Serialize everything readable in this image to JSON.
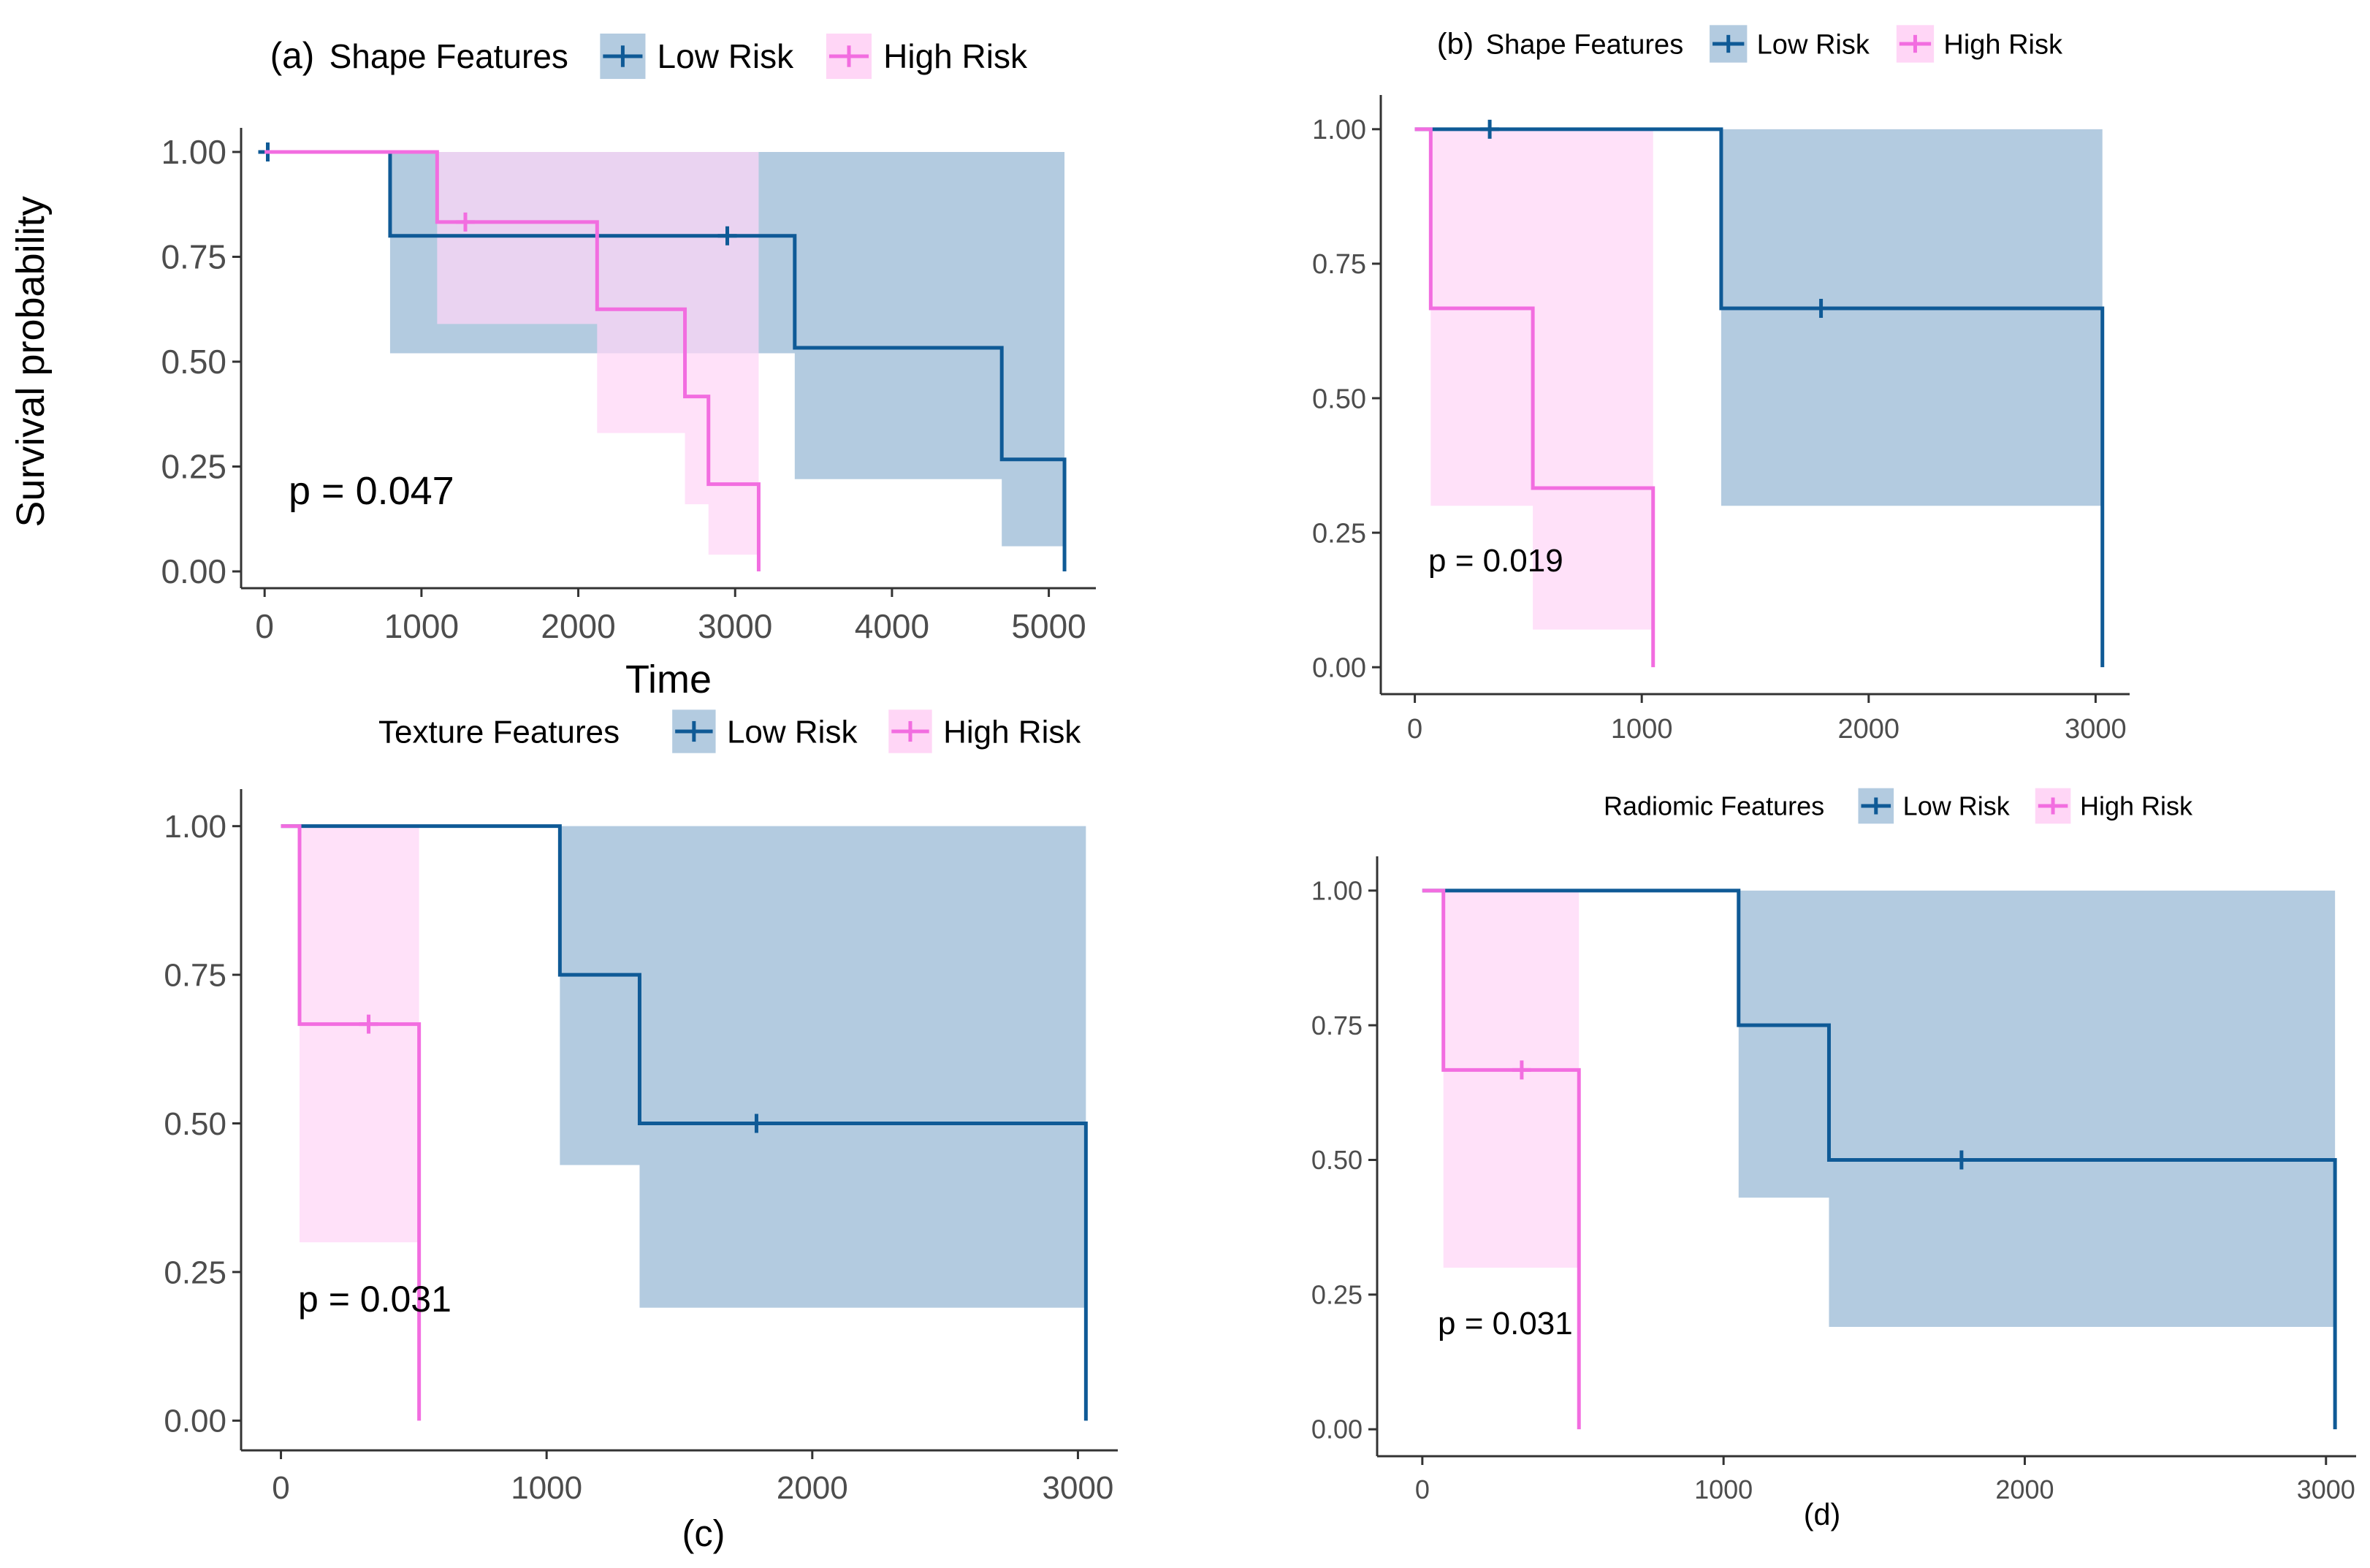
{
  "figure": {
    "ylabel": "Survival probability"
  },
  "colors": {
    "low_risk": "#0f5a96",
    "low_risk_band": "#b3cbe0",
    "high_risk": "#f26de0",
    "high_risk_band": "#ffd6f6",
    "axis": "#333333"
  },
  "chart_data": [
    {
      "type": "line",
      "panel_label": "(a)",
      "legend_title": "Shape Features",
      "legend_placement": "top",
      "xlabel": "Time",
      "ylabel": "Survival probability",
      "p_value_text": "p = 0.047",
      "xlim": [
        -150,
        5300
      ],
      "ylim": [
        -0.04,
        1.04
      ],
      "x_ticks": [
        0,
        1000,
        2000,
        3000,
        4000,
        5000
      ],
      "y_ticks": [
        0.0,
        0.25,
        0.5,
        0.75,
        1.0
      ],
      "x_tick_labels": [
        "0",
        "1000",
        "2000",
        "3000",
        "4000",
        "5000"
      ],
      "y_tick_labels": [
        "0.00",
        "0.25",
        "0.50",
        "0.75",
        "1.00"
      ],
      "series": [
        {
          "name": "Low Risk",
          "steps": [
            [
              0,
              1.0
            ],
            [
              800,
              0.8
            ],
            [
              3380,
              0.533
            ],
            [
              4700,
              0.267
            ],
            [
              5100,
              0.0
            ]
          ],
          "end_x": 5100,
          "band": [
            [
              800,
              0.52,
              1.0
            ],
            [
              3380,
              0.22,
              1.0
            ],
            [
              4700,
              0.06,
              1.0
            ],
            [
              5100,
              0.06,
              1.0
            ]
          ],
          "censor": [
            [
              20,
              1.0
            ],
            [
              2950,
              0.8
            ]
          ]
        },
        {
          "name": "High Risk",
          "steps": [
            [
              0,
              1.0
            ],
            [
              1100,
              0.833
            ],
            [
              2120,
              0.625
            ],
            [
              2680,
              0.417
            ],
            [
              2830,
              0.208
            ],
            [
              3150,
              0.0
            ]
          ],
          "end_x": 3150,
          "band": [
            [
              1100,
              0.59,
              1.0
            ],
            [
              2120,
              0.33,
              1.0
            ],
            [
              2680,
              0.16,
              1.0
            ],
            [
              2830,
              0.04,
              1.0
            ],
            [
              3150,
              0.04,
              1.0
            ]
          ],
          "censor": [
            [
              1280,
              0.833
            ]
          ]
        }
      ]
    },
    {
      "type": "line",
      "panel_label": "(b)",
      "legend_title": "Shape Features",
      "legend_placement": "top",
      "xlabel": "",
      "ylabel": "",
      "p_value_text": "p = 0.019",
      "xlim": [
        -150,
        3150
      ],
      "ylim": [
        -0.05,
        1.05
      ],
      "x_ticks": [
        0,
        1000,
        2000,
        3000
      ],
      "y_ticks": [
        0.0,
        0.25,
        0.5,
        0.75,
        1.0
      ],
      "x_tick_labels": [
        "0",
        "1000",
        "2000",
        "3000"
      ],
      "y_tick_labels": [
        "0.00",
        "0.25",
        "0.50",
        "0.75",
        "1.00"
      ],
      "series": [
        {
          "name": "Low Risk",
          "steps": [
            [
              0,
              1.0
            ],
            [
              1350,
              0.667
            ],
            [
              3030,
              0.0
            ]
          ],
          "end_x": 3030,
          "band": [
            [
              1350,
              0.3,
              1.0
            ],
            [
              3030,
              0.3,
              1.0
            ]
          ],
          "censor": [
            [
              330,
              1.0
            ],
            [
              1790,
              0.667
            ]
          ]
        },
        {
          "name": "High Risk",
          "steps": [
            [
              0,
              1.0
            ],
            [
              70,
              0.667
            ],
            [
              520,
              0.333
            ],
            [
              1050,
              0.0
            ]
          ],
          "end_x": 1050,
          "band": [
            [
              70,
              0.3,
              1.0
            ],
            [
              520,
              0.07,
              1.0
            ],
            [
              1050,
              0.07,
              1.0
            ]
          ],
          "censor": []
        }
      ]
    },
    {
      "type": "line",
      "panel_label": "(c)",
      "legend_title": "Texture Features",
      "legend_placement": "top",
      "xlabel": "",
      "ylabel": "",
      "p_value_text": "p = 0.031",
      "xlim": [
        -150,
        3150
      ],
      "ylim": [
        -0.05,
        1.05
      ],
      "x_ticks": [
        0,
        1000,
        2000,
        3000
      ],
      "y_ticks": [
        0.0,
        0.25,
        0.5,
        0.75,
        1.0
      ],
      "x_tick_labels": [
        "0",
        "1000",
        "2000",
        "3000"
      ],
      "y_tick_labels": [
        "0.00",
        "0.25",
        "0.50",
        "0.75",
        "1.00"
      ],
      "series": [
        {
          "name": "Low Risk",
          "steps": [
            [
              0,
              1.0
            ],
            [
              1050,
              0.75
            ],
            [
              1350,
              0.5
            ],
            [
              3030,
              0.0
            ]
          ],
          "end_x": 3030,
          "band": [
            [
              1050,
              0.43,
              1.0
            ],
            [
              1350,
              0.19,
              1.0
            ],
            [
              3030,
              0.19,
              1.0
            ]
          ],
          "censor": [
            [
              1790,
              0.5
            ]
          ]
        },
        {
          "name": "High Risk",
          "steps": [
            [
              0,
              1.0
            ],
            [
              70,
              0.667
            ],
            [
              520,
              0.0
            ]
          ],
          "end_x": 520,
          "band": [
            [
              70,
              0.3,
              1.0
            ],
            [
              520,
              0.3,
              1.0
            ]
          ],
          "censor": [
            [
              330,
              0.667
            ]
          ]
        }
      ]
    },
    {
      "type": "line",
      "panel_label": "(d)",
      "legend_title": "Radiomic Features",
      "legend_placement": "top",
      "xlabel": "",
      "ylabel": "",
      "p_value_text": "p = 0.031",
      "xlim": [
        -150,
        3100
      ],
      "ylim": [
        -0.05,
        1.05
      ],
      "x_ticks": [
        0,
        1000,
        2000,
        3000
      ],
      "y_ticks": [
        0.0,
        0.25,
        0.5,
        0.75,
        1.0
      ],
      "x_tick_labels": [
        "0",
        "1000",
        "2000",
        "3000"
      ],
      "y_tick_labels": [
        "0.00",
        "0.25",
        "0.50",
        "0.75",
        "1.00"
      ],
      "series": [
        {
          "name": "Low Risk",
          "steps": [
            [
              0,
              1.0
            ],
            [
              1050,
              0.75
            ],
            [
              1350,
              0.5
            ],
            [
              3030,
              0.0
            ]
          ],
          "end_x": 3030,
          "band": [
            [
              1050,
              0.43,
              1.0
            ],
            [
              1350,
              0.19,
              1.0
            ],
            [
              3030,
              0.19,
              1.0
            ]
          ],
          "censor": [
            [
              1790,
              0.5
            ]
          ]
        },
        {
          "name": "High Risk",
          "steps": [
            [
              0,
              1.0
            ],
            [
              70,
              0.667
            ],
            [
              520,
              0.0
            ]
          ],
          "end_x": 520,
          "band": [
            [
              70,
              0.3,
              1.0
            ],
            [
              520,
              0.3,
              1.0
            ]
          ],
          "censor": [
            [
              330,
              0.667
            ]
          ]
        }
      ]
    }
  ]
}
